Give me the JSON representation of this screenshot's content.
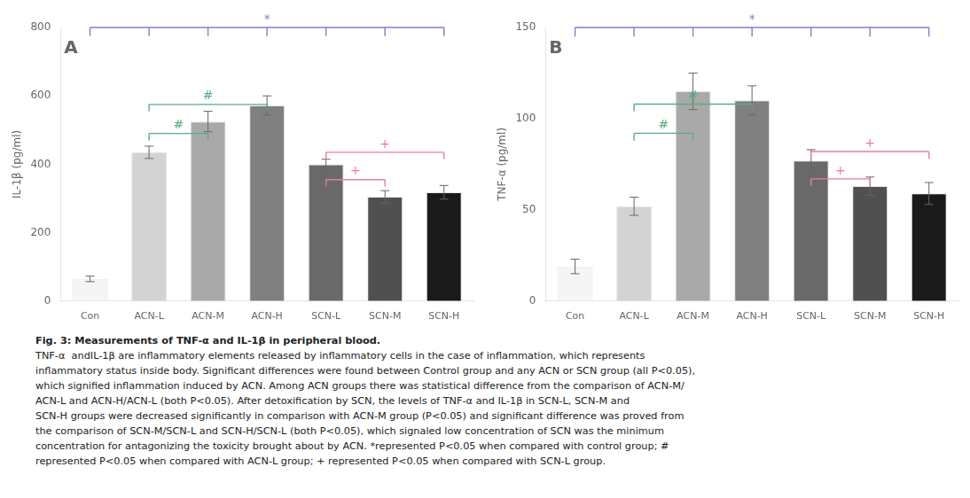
{
  "chart_data": [
    {
      "type": "bar",
      "label": "A",
      "categories": [
        "Con",
        "ACN-L",
        "ACN-M",
        "ACN-H",
        "SCN-L",
        "SCN-M",
        "SCN-H"
      ],
      "values": [
        65,
        435,
        525,
        572,
        400,
        305,
        318
      ],
      "errors": [
        8,
        18,
        30,
        28,
        15,
        18,
        20
      ],
      "colors": [
        "#f5f5f5",
        "#d3d3d3",
        "#a9a9a9",
        "#808080",
        "#696969",
        "#505050",
        "#1a1a1a"
      ],
      "ylabel": "IL-1β (pg/ml)",
      "ylim": [
        0,
        800
      ],
      "yticks": [
        0,
        200,
        400,
        600,
        800
      ],
      "grid": false,
      "annotations": [
        {
          "type": "bracket",
          "from": "Con",
          "to": [
            "ACN-L",
            "ACN-M",
            "ACN-H",
            "SCN-L",
            "SCN-M",
            "SCN-H"
          ],
          "y": 800,
          "y_bottom": 775,
          "label": "*",
          "color": "#8B7BC8"
        },
        {
          "type": "bracket",
          "from": "ACN-L",
          "to": [
            "ACN-M"
          ],
          "y": 490,
          "y_bottom": 470,
          "label": "#",
          "color": "#5BAD7F"
        },
        {
          "type": "bracket",
          "from": "ACN-L",
          "to": [
            "ACN-H"
          ],
          "y": 575,
          "y_bottom": 555,
          "label": "#",
          "color": "#5BAD7F"
        },
        {
          "type": "bracket",
          "from": "SCN-L",
          "to": [
            "SCN-M"
          ],
          "y": 355,
          "y_bottom": 335,
          "label": "+",
          "color": "#E87CA0"
        },
        {
          "type": "bracket",
          "from": "SCN-L",
          "to": [
            "SCN-H"
          ],
          "y": 435,
          "y_bottom": 415,
          "label": "+",
          "color": "#E87CA0"
        }
      ]
    },
    {
      "type": "bar",
      "label": "B",
      "categories": [
        "Con",
        "ACN-L",
        "ACN-M",
        "ACN-H",
        "SCN-L",
        "SCN-M",
        "SCN-H"
      ],
      "values": [
        19,
        52,
        115,
        110,
        77,
        63,
        59
      ],
      "errors": [
        4,
        5,
        10,
        8,
        6,
        5,
        6
      ],
      "colors": [
        "#f5f5f5",
        "#d3d3d3",
        "#a9a9a9",
        "#808080",
        "#696969",
        "#505050",
        "#1a1a1a"
      ],
      "ylabel": "TNF-α (pg/ml)",
      "ylim": [
        0,
        150
      ],
      "yticks": [
        0,
        50,
        100,
        150
      ],
      "grid": false,
      "annotations": [
        {
          "type": "bracket",
          "from": "Con",
          "to": [
            "ACN-L",
            "ACN-M",
            "ACN-H",
            "SCN-L",
            "SCN-M",
            "SCN-H"
          ],
          "y": 150,
          "y_bottom": 145,
          "label": "*",
          "color": "#8B7BC8"
        },
        {
          "type": "bracket",
          "from": "ACN-L",
          "to": [
            "ACN-M"
          ],
          "y": 92,
          "y_bottom": 88,
          "label": "#",
          "color": "#5BAD7F"
        },
        {
          "type": "bracket",
          "from": "ACN-L",
          "to": [
            "ACN-H"
          ],
          "y": 108,
          "y_bottom": 104,
          "label": "#",
          "color": "#5BAD7F"
        },
        {
          "type": "bracket",
          "from": "SCN-L",
          "to": [
            "SCN-M"
          ],
          "y": 67,
          "y_bottom": 63,
          "label": "+",
          "color": "#E87CA0"
        },
        {
          "type": "bracket",
          "from": "SCN-L",
          "to": [
            "SCN-H"
          ],
          "y": 82,
          "y_bottom": 78,
          "label": "+",
          "color": "#E87CA0"
        }
      ]
    }
  ],
  "caption": {
    "title": "Fig. 3: Measurements of TNF-α and IL-1β in peripheral blood.",
    "lines": [
      "TNF-α  andIL-1β are inflammatory elements released by inflammatory cells in the case of inflammation, which represents",
      "inflammatory status inside body. Significant differences were found between Control group and any ACN or SCN group (all P<0.05),",
      "which signified inflammation induced by ACN. Among ACN groups there was statistical difference from the comparison of ACN-M/",
      "ACN-L and ACN-H/ACN-L (both P<0.05). After detoxification by SCN, the levels of TNF-α and IL-1β in SCN-L, SCN-M and",
      "SCN-H groups were decreased significantly in comparison with ACN-M group (P<0.05) and significant difference was proved from",
      "the comparison of SCN-M/SCN-L and SCN-H/SCN-L (both P<0.05), which signaled low concentration of SCN was the minimum",
      "concentration for antagonizing the toxicity brought about by ACN. *represented P<0.05 when compared with control group; #",
      "represented P<0.05 when compared with ACN-L group; + represented P<0.05 when compared with SCN-L group."
    ]
  }
}
